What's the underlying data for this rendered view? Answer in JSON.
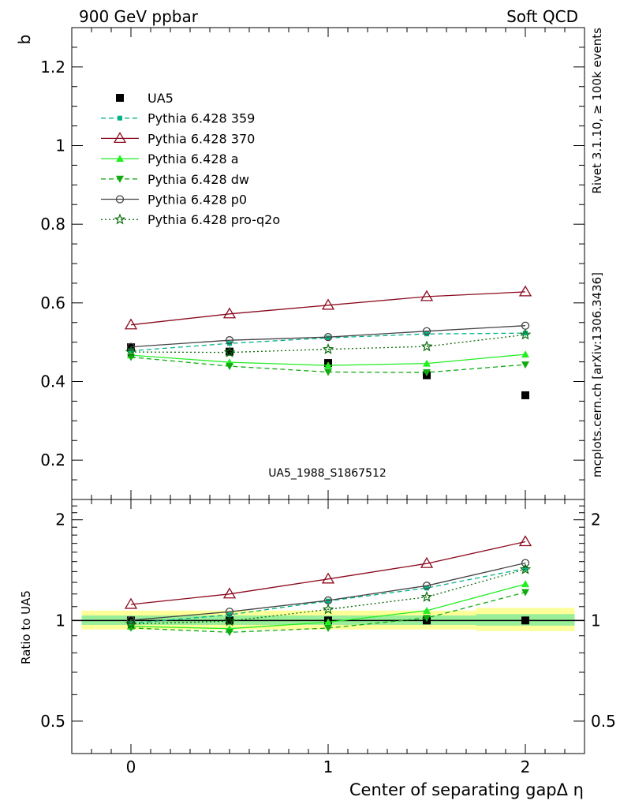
{
  "header": {
    "left": "900 GeV ppbar",
    "right": "Soft QCD"
  },
  "side_labels": {
    "rivet": "Rivet 3.1.10, ≥ 100k events",
    "mcplots": "mcplots.cern.ch [arXiv:1306.3436]"
  },
  "watermark": "UA5_1988_S1867512",
  "colors": {
    "ua5": "#000000",
    "p359": "#00b386",
    "p370": "#8b0a1e",
    "pa": "#22ee22",
    "pdw": "#11aa11",
    "pp0": "#444444",
    "pq2o": "#0a6b0a",
    "band_yellow": "#ffff99",
    "band_green": "#99ee99"
  },
  "chart_data": [
    {
      "type": "line",
      "ylabel": "b",
      "xlim": [
        -0.3,
        2.3
      ],
      "ylim": [
        0.1,
        1.3
      ],
      "yticks": [
        0.2,
        0.4,
        0.6,
        0.8,
        1,
        1.2
      ],
      "ytick_labels": [
        "0.2",
        "0.4",
        "0.6",
        "0.8",
        "1",
        "1.2"
      ],
      "x": [
        0,
        0.5,
        1,
        1.5,
        2
      ],
      "series": [
        {
          "key": "ua5",
          "name": "UA5",
          "values": [
            0.487,
            0.476,
            0.447,
            0.416,
            0.365
          ]
        },
        {
          "key": "p359",
          "name": "Pythia 6.428 359",
          "values": [
            0.478,
            0.497,
            0.511,
            0.521,
            0.523
          ]
        },
        {
          "key": "p370",
          "name": "Pythia 6.428 370",
          "values": [
            0.544,
            0.572,
            0.594,
            0.616,
            0.628
          ]
        },
        {
          "key": "pa",
          "name": "Pythia 6.428 a",
          "values": [
            0.467,
            0.449,
            0.441,
            0.446,
            0.469
          ]
        },
        {
          "key": "pdw",
          "name": "Pythia 6.428 dw",
          "values": [
            0.462,
            0.439,
            0.424,
            0.423,
            0.443
          ]
        },
        {
          "key": "pp0",
          "name": "Pythia 6.428 p0",
          "values": [
            0.488,
            0.505,
            0.513,
            0.528,
            0.542
          ]
        },
        {
          "key": "pq2o",
          "name": "Pythia 6.428 pro-q2o",
          "values": [
            0.475,
            0.474,
            0.482,
            0.489,
            0.519
          ]
        }
      ]
    },
    {
      "type": "line",
      "ylabel": "Ratio to UA5",
      "xlabel": "Center of separating gapΔ η",
      "ylim": [
        0.4,
        2.3
      ],
      "scale": "log",
      "yticks": [
        0.5,
        1,
        2
      ],
      "ytick_labels": [
        "0.5",
        "1",
        "2"
      ],
      "xticks": [
        0,
        1,
        2
      ],
      "xtick_labels": [
        "0",
        "1",
        "2"
      ],
      "x": [
        0,
        0.5,
        1,
        1.5,
        2
      ],
      "band": [
        {
          "x": [
            -0.25,
            1.75
          ],
          "yellow": [
            0.94,
            1.07
          ],
          "green": [
            0.97,
            1.035
          ]
        },
        {
          "x": [
            1.75,
            2.25
          ],
          "yellow": [
            0.93,
            1.09
          ],
          "green": [
            0.965,
            1.045
          ]
        }
      ],
      "series": [
        {
          "key": "ua5",
          "name": "UA5",
          "values": [
            1.0,
            1.0,
            1.0,
            1.0,
            1.0
          ]
        },
        {
          "key": "p359",
          "name": "Pythia 6.428 359",
          "values": [
            0.98,
            1.04,
            1.143,
            1.25,
            1.43
          ]
        },
        {
          "key": "p370",
          "name": "Pythia 6.428 370",
          "values": [
            1.117,
            1.2,
            1.33,
            1.48,
            1.72
          ]
        },
        {
          "key": "pa",
          "name": "Pythia 6.428 a",
          "values": [
            0.96,
            0.945,
            0.988,
            1.07,
            1.285
          ]
        },
        {
          "key": "pdw",
          "name": "Pythia 6.428 dw",
          "values": [
            0.95,
            0.922,
            0.949,
            1.017,
            1.214
          ]
        },
        {
          "key": "pp0",
          "name": "Pythia 6.428 p0",
          "values": [
            1.002,
            1.062,
            1.148,
            1.27,
            1.485
          ]
        },
        {
          "key": "pq2o",
          "name": "Pythia 6.428 pro-q2o",
          "values": [
            0.976,
            0.995,
            1.079,
            1.175,
            1.422
          ]
        }
      ]
    }
  ]
}
